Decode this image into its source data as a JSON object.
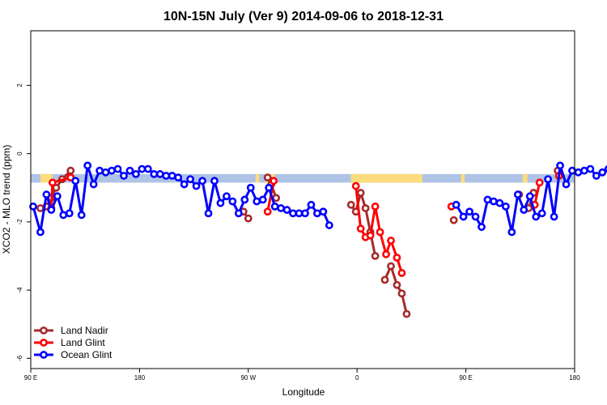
{
  "chart_data": {
    "type": "line",
    "title": "10N-15N July (Ver 9)   2014-09-06 to 2018-12-31",
    "xlabel": "Longitude",
    "ylabel": "XCO2 - MLO trend (ppm)",
    "x_ticks": [
      {
        "value": 90,
        "label": "90 E"
      },
      {
        "value": 180,
        "label": "180"
      },
      {
        "value": 270,
        "label": "90 W"
      },
      {
        "value": 360,
        "label": "0"
      },
      {
        "value": 450,
        "label": "90 E"
      },
      {
        "value": 540,
        "label": "180"
      }
    ],
    "y_ticks": [
      {
        "value": -6,
        "label": "-6"
      },
      {
        "value": -4,
        "label": "-4"
      },
      {
        "value": -2,
        "label": "-2"
      },
      {
        "value": 0,
        "label": "0"
      },
      {
        "value": 2,
        "label": "2"
      }
    ],
    "xlim": [
      90,
      540
    ],
    "ylim": [
      -6.3,
      3.6
    ],
    "legend_position": "bottom-left",
    "band": {
      "y_range": [
        -0.85,
        -0.6
      ],
      "color": "#aec3e6",
      "land_color": "#fcdc7c"
    },
    "series": [
      {
        "name": "Land Nadir",
        "color": "#a52a2a",
        "segments": [
          [
            [
              98,
              -1.6
            ],
            [
              103,
              -1.55
            ],
            [
              107,
              -1.3
            ],
            [
              111,
              -1.0
            ],
            [
              116,
              -0.75
            ],
            [
              123,
              -0.5
            ]
          ],
          [
            [
              286,
              -0.7
            ],
            [
              289,
              -0.9
            ],
            [
              293,
              -1.3
            ]
          ],
          [
            [
              266,
              -1.7
            ],
            [
              270,
              -1.9
            ]
          ],
          [
            [
              355,
              -1.5
            ],
            [
              359,
              -1.7
            ],
            [
              363,
              -1.15
            ],
            [
              367,
              -1.6
            ],
            [
              371,
              -2.3
            ],
            [
              375,
              -3.0
            ]
          ],
          [
            [
              383,
              -3.7
            ],
            [
              388,
              -3.3
            ],
            [
              393,
              -3.85
            ],
            [
              397,
              -4.1
            ],
            [
              401,
              -4.7
            ]
          ],
          [
            [
              440,
              -1.95
            ]
          ],
          [
            [
              494,
              -1.2
            ]
          ],
          [
            [
              502,
              -1.6
            ],
            [
              506,
              -1.15
            ]
          ],
          [
            [
              526,
              -0.5
            ]
          ]
        ]
      },
      {
        "name": "Land Glint",
        "color": "#ff0000",
        "segments": [
          [
            [
              107,
              -1.6
            ],
            [
              108,
              -0.85
            ],
            [
              123,
              -0.7
            ]
          ],
          [
            [
              286,
              -1.7
            ],
            [
              291,
              -0.8
            ]
          ],
          [
            [
              359,
              -0.95
            ],
            [
              363,
              -2.2
            ],
            [
              367,
              -2.45
            ],
            [
              371,
              -2.4
            ],
            [
              375,
              -1.55
            ],
            [
              379,
              -2.3
            ],
            [
              384,
              -2.95
            ],
            [
              388,
              -2.55
            ],
            [
              393,
              -3.05
            ],
            [
              397,
              -3.5
            ]
          ],
          [
            [
              438,
              -1.55
            ]
          ],
          [
            [
              507,
              -1.5
            ],
            [
              511,
              -0.85
            ]
          ],
          [
            [
              527,
              -0.65
            ]
          ]
        ]
      },
      {
        "name": "Ocean Glint",
        "color": "#0000ff",
        "segments": [
          [
            [
              92,
              -1.55
            ],
            [
              98,
              -2.3
            ],
            [
              103,
              -1.2
            ],
            [
              107,
              -1.65
            ],
            [
              112,
              -1.25
            ],
            [
              117,
              -1.8
            ],
            [
              122,
              -1.75
            ],
            [
              127,
              -0.8
            ],
            [
              132,
              -1.8
            ],
            [
              137,
              -0.35
            ],
            [
              142,
              -0.9
            ],
            [
              147,
              -0.5
            ],
            [
              152,
              -0.55
            ],
            [
              157,
              -0.5
            ],
            [
              162,
              -0.45
            ],
            [
              167,
              -0.65
            ],
            [
              172,
              -0.5
            ],
            [
              177,
              -0.6
            ],
            [
              182,
              -0.45
            ],
            [
              187,
              -0.45
            ],
            [
              192,
              -0.6
            ],
            [
              197,
              -0.6
            ],
            [
              202,
              -0.65
            ],
            [
              207,
              -0.65
            ],
            [
              212,
              -0.7
            ],
            [
              217,
              -0.9
            ],
            [
              222,
              -0.75
            ],
            [
              227,
              -0.95
            ],
            [
              232,
              -0.8
            ],
            [
              237,
              -1.75
            ],
            [
              242,
              -0.8
            ],
            [
              247,
              -1.45
            ],
            [
              252,
              -1.25
            ],
            [
              257,
              -1.4
            ],
            [
              262,
              -1.75
            ],
            [
              267,
              -1.35
            ],
            [
              272,
              -1.0
            ],
            [
              277,
              -1.4
            ],
            [
              282,
              -1.35
            ],
            [
              287,
              -1.0
            ],
            [
              292,
              -1.55
            ],
            [
              297,
              -1.6
            ],
            [
              302,
              -1.65
            ],
            [
              307,
              -1.75
            ],
            [
              312,
              -1.75
            ],
            [
              317,
              -1.75
            ],
            [
              322,
              -1.5
            ],
            [
              327,
              -1.75
            ],
            [
              332,
              -1.7
            ],
            [
              337,
              -2.1
            ]
          ],
          [
            [
              442,
              -1.5
            ],
            [
              448,
              -1.85
            ],
            [
              453,
              -1.7
            ],
            [
              458,
              -1.85
            ],
            [
              463,
              -2.15
            ],
            [
              468,
              -1.35
            ],
            [
              473,
              -1.4
            ],
            [
              478,
              -1.45
            ],
            [
              483,
              -1.55
            ],
            [
              488,
              -2.3
            ],
            [
              493,
              -1.2
            ],
            [
              498,
              -1.65
            ],
            [
              503,
              -1.25
            ],
            [
              508,
              -1.85
            ],
            [
              513,
              -1.75
            ],
            [
              518,
              -0.75
            ],
            [
              523,
              -1.85
            ],
            [
              528,
              -0.35
            ],
            [
              533,
              -0.9
            ],
            [
              538,
              -0.5
            ],
            [
              543,
              -0.55
            ],
            [
              548,
              -0.5
            ],
            [
              553,
              -0.45
            ],
            [
              558,
              -0.65
            ],
            [
              563,
              -0.55
            ],
            [
              568,
              -0.45
            ]
          ]
        ]
      }
    ]
  }
}
